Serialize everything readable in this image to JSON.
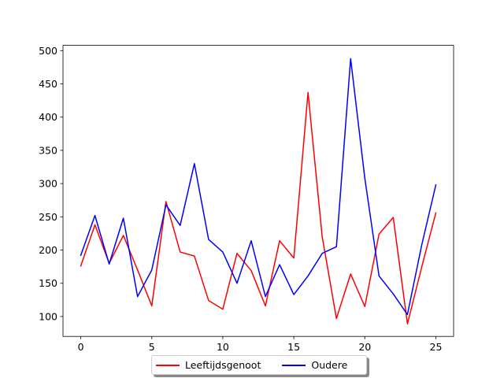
{
  "chart_data": {
    "type": "line",
    "x": [
      0,
      1,
      2,
      3,
      4,
      5,
      6,
      7,
      8,
      9,
      10,
      11,
      12,
      13,
      14,
      15,
      16,
      17,
      18,
      19,
      20,
      21,
      22,
      23,
      24,
      25
    ],
    "series": [
      {
        "name": "Leeftijdsgenoot",
        "color": "#ff0000",
        "values": [
          176,
          238,
          180,
          222,
          170,
          116,
          273,
          197,
          191,
          124,
          111,
          195,
          169,
          116,
          214,
          188,
          437,
          220,
          97,
          164,
          115,
          224,
          249,
          89,
          174,
          256
        ]
      },
      {
        "name": "Oudere",
        "color": "#0000ff",
        "values": [
          192,
          252,
          179,
          248,
          130,
          170,
          268,
          237,
          330,
          216,
          197,
          150,
          214,
          130,
          178,
          133,
          161,
          195,
          205,
          488,
          308,
          161,
          134,
          103,
          207,
          298
        ]
      }
    ],
    "xticks": [
      0,
      5,
      10,
      15,
      20,
      25
    ],
    "yticks": [
      100,
      150,
      200,
      250,
      300,
      350,
      400,
      450,
      500
    ],
    "xlim": [
      -1.25,
      26.25
    ],
    "ylim": [
      70.05,
      507.95
    ],
    "grid": false,
    "legend_position": "bottom-center"
  }
}
